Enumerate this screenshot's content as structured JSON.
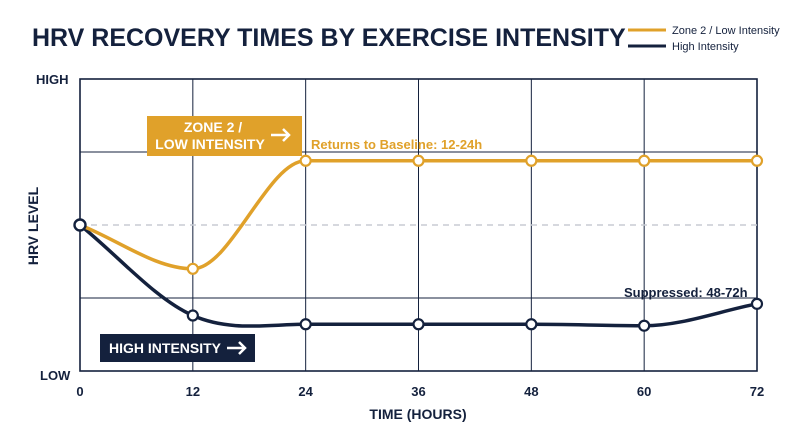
{
  "chart_data": {
    "type": "line",
    "title": "HRV RECOVERY TIMES BY EXERCISE INTENSITY",
    "xlabel": "TIME (HOURS)",
    "ylabel": "HRV LEVEL",
    "y_tick_labels": [
      "LOW",
      "HIGH"
    ],
    "x": [
      0,
      12,
      24,
      36,
      48,
      60,
      72
    ],
    "xlim": [
      0,
      72
    ],
    "ylim": [
      0,
      100
    ],
    "baseline": 50,
    "grid": true,
    "legend_position": "top-right",
    "series": [
      {
        "name": "Zone 2 / Low Intensity",
        "color": "#e0a12a",
        "values": [
          50,
          35,
          72,
          72,
          72,
          72,
          72
        ]
      },
      {
        "name": "High Intensity",
        "color": "#14213d",
        "values": [
          50,
          19,
          16,
          16,
          16,
          15.5,
          23
        ]
      }
    ],
    "annotations": {
      "zone2_box": "ZONE 2 / LOW INTENSITY",
      "zone2_box_lines": [
        "ZONE 2 /",
        "LOW INTENSITY"
      ],
      "zone2_note": "Returns to Baseline: 12-24h",
      "high_box": "HIGH INTENSITY",
      "high_note": "Suppressed: 48-72h"
    }
  },
  "colors": {
    "navy": "#14213d",
    "gold": "#e0a12a",
    "grid": "#14213d",
    "baseline": "#c8ccd4"
  }
}
